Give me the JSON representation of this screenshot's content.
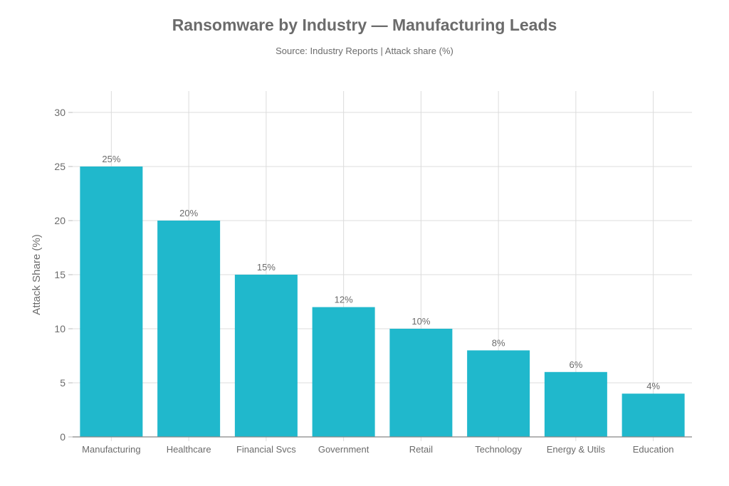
{
  "chart_data": {
    "type": "bar",
    "title": "Ransomware by Industry — Manufacturing Leads",
    "subtitle": "Source: Industry Reports | Attack share (%)",
    "xlabel": "",
    "ylabel": "Attack Share (%)",
    "categories": [
      "Manufacturing",
      "Healthcare",
      "Financial Svcs",
      "Government",
      "Retail",
      "Technology",
      "Energy & Utils",
      "Education"
    ],
    "values": [
      25,
      20,
      15,
      12,
      10,
      8,
      6,
      4
    ],
    "data_labels": [
      "25%",
      "20%",
      "15%",
      "12%",
      "10%",
      "8%",
      "6%",
      "4%"
    ],
    "ylim": [
      0,
      30
    ],
    "yticks": [
      0,
      5,
      10,
      15,
      20,
      25,
      30
    ],
    "grid": true,
    "bar_color": "#20B8CC"
  }
}
